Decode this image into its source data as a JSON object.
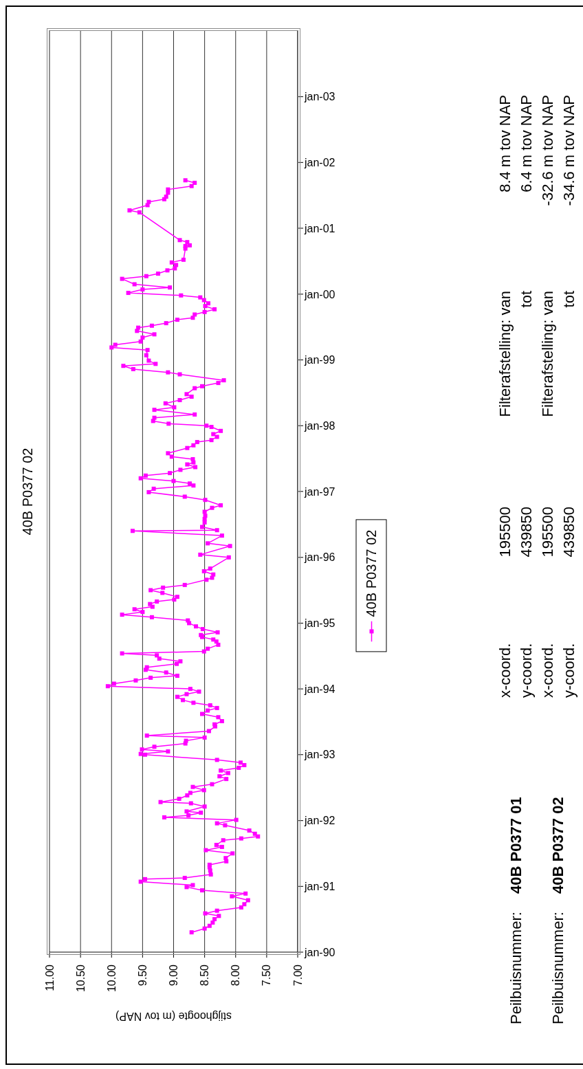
{
  "chart_data": {
    "type": "line",
    "orientation": "horizontal",
    "title": "40B P0377 02",
    "xlabel": "stijghoogte (m tov NAP)",
    "ylim": [
      "1990-01",
      "2004-01"
    ],
    "yticks": [
      {
        "value": "1990-01",
        "label": "jan-90"
      },
      {
        "value": "1991-01",
        "label": "jan-91"
      },
      {
        "value": "1992-01",
        "label": "jan-92"
      },
      {
        "value": "1993-01",
        "label": "jan-93"
      },
      {
        "value": "1994-01",
        "label": "jan-94"
      },
      {
        "value": "1995-01",
        "label": "jan-95"
      },
      {
        "value": "1996-01",
        "label": "jan-96"
      },
      {
        "value": "1997-01",
        "label": "jan-97"
      },
      {
        "value": "1998-01",
        "label": "jan-98"
      },
      {
        "value": "1999-01",
        "label": "jan-99"
      },
      {
        "value": "2000-01",
        "label": "jan-00"
      },
      {
        "value": "2001-01",
        "label": "jan-01"
      },
      {
        "value": "2002-01",
        "label": "jan-02"
      },
      {
        "value": "2003-01",
        "label": "jan-03"
      }
    ],
    "xlim": [
      11,
      7
    ],
    "xticks": [
      {
        "value": 7,
        "label": "7.00"
      },
      {
        "value": 7.5,
        "label": "7.50"
      },
      {
        "value": 8,
        "label": "8.00"
      },
      {
        "value": 8.5,
        "label": "8.50"
      },
      {
        "value": 9,
        "label": "9.00"
      },
      {
        "value": 9.5,
        "label": "9.50"
      },
      {
        "value": 10,
        "label": "10.00"
      },
      {
        "value": 10.5,
        "label": "10.50"
      },
      {
        "value": 11,
        "label": "11.00"
      }
    ],
    "grid": "x",
    "legend": "bottom",
    "marker": "square",
    "x": [
      "1990-04-21",
      "1990-05-12",
      "1990-05-27",
      "1990-06-14",
      "1990-07-03",
      "1990-07-21",
      "1990-08-04",
      "1990-08-19",
      "1990-09-06",
      "1990-09-24",
      "1990-10-16",
      "1990-11-07",
      "1990-11-22",
      "1990-12-10",
      "1990-12-28",
      "1991-01-08",
      "1991-01-27",
      "1991-02-10",
      "1991-02-17",
      "1991-03-08",
      "1991-03-30",
      "1991-04-17",
      "1991-05-01",
      "1991-05-20",
      "1991-06-07",
      "1991-07-03",
      "1991-07-21",
      "1991-08-08",
      "1991-08-19",
      "1991-09-14",
      "1991-09-24",
      "1991-10-05",
      "1991-10-20",
      "1991-11-07",
      "1991-12-06",
      "1991-12-17",
      "1992-01-05",
      "1992-01-19",
      "1992-01-30",
      "1992-02-14",
      "1992-02-21",
      "1992-03-19",
      "1992-04-06",
      "1992-04-13",
      "1992-05-01",
      "1992-05-20",
      "1992-06-03",
      "1992-06-18",
      "1992-07-06",
      "1992-07-21",
      "1992-08-19",
      "1992-09-03",
      "1992-09-21",
      "1992-10-05",
      "1992-10-20",
      "1992-11-04",
      "1992-11-18",
      "1992-12-03",
      "1993-01-01",
      "1993-01-05",
      "1993-01-19",
      "1993-01-30",
      "1993-02-14",
      "1993-03-04",
      "1993-03-19",
      "1993-04-06",
      "1993-04-17",
      "1993-05-12",
      "1993-06-07",
      "1993-06-18",
      "1993-07-06",
      "1993-07-28",
      "1993-08-15",
      "1993-09-03",
      "1993-09-17",
      "1993-10-02",
      "1993-10-16",
      "1993-10-31",
      "1993-11-18",
      "1993-12-03",
      "1993-12-17",
      "1994-01-01",
      "1994-01-16",
      "1994-01-30",
      "1994-02-17",
      "1994-03-04",
      "1994-03-15",
      "1994-04-02",
      "1994-04-17",
      "1994-05-01",
      "1994-05-20",
      "1994-06-03",
      "1994-06-18",
      "1994-07-06",
      "1994-07-17",
      "1994-07-28",
      "1994-08-12",
      "1994-09-03",
      "1994-09-21",
      "1994-10-02",
      "1994-10-16",
      "1994-10-27",
      "1994-11-11",
      "1994-11-29",
      "1994-12-14",
      "1995-01-01",
      "1995-01-16",
      "1995-02-03",
      "1995-02-17",
      "1995-03-04",
      "1995-03-19",
      "1995-04-02",
      "1995-04-17",
      "1995-05-01",
      "1995-05-12",
      "1995-05-27",
      "1995-06-18",
      "1995-07-03",
      "1995-07-17",
      "1995-08-01",
      "1995-08-30",
      "1995-09-10",
      "1995-09-28",
      "1995-10-16",
      "1995-10-31",
      "1996-01-01",
      "1996-01-16",
      "1996-03-04",
      "1996-03-19",
      "1996-05-01",
      "1996-05-27",
      "1996-05-31",
      "1996-06-18",
      "1996-07-13",
      "1996-08-01",
      "1996-08-19",
      "1996-09-10",
      "1996-10-02",
      "1996-10-16",
      "1996-11-15",
      "1996-12-03",
      "1996-12-28",
      "1997-01-16",
      "1997-02-03",
      "1997-02-14",
      "1997-02-28",
      "1997-03-15",
      "1997-03-30",
      "1997-04-13",
      "1997-05-01",
      "1997-05-16",
      "1997-05-31",
      "1997-06-11",
      "1997-06-29",
      "1997-07-13",
      "1997-08-01",
      "1997-08-30",
      "1997-09-14",
      "1997-10-02",
      "1997-10-13",
      "1997-10-31",
      "1997-11-15",
      "1997-12-03",
      "1997-12-25",
      "1998-01-01",
      "1998-01-12",
      "1998-01-27",
      "1998-02-14",
      "1998-03-04",
      "1998-03-30",
      "1998-04-13",
      "1998-05-05",
      "1998-05-23",
      "1998-06-11",
      "1998-06-25",
      "1998-07-28",
      "1998-08-08",
      "1998-08-26",
      "1998-09-10",
      "1998-10-13",
      "1998-10-24",
      "1998-11-11",
      "1998-11-29",
      "1998-12-10",
      "1998-12-28",
      "1999-01-27",
      "1999-02-25",
      "1999-03-11",
      "1999-03-26",
      "1999-04-13",
      "1999-05-05",
      "1999-05-23",
      "1999-06-11",
      "1999-06-29",
      "1999-07-10",
      "1999-07-24",
      "1999-08-12",
      "1999-08-23",
      "1999-09-10",
      "1999-09-24",
      "1999-10-09",
      "1999-10-27",
      "1999-11-11",
      "1999-11-29",
      "1999-12-14",
      "1999-12-25",
      "2000-01-08",
      "2000-01-27",
      "2000-02-07",
      "2000-02-25",
      "2000-03-26",
      "2000-04-10",
      "2000-04-24",
      "2000-05-12",
      "2000-05-23",
      "2000-06-11",
      "2000-06-25",
      "2000-07-10",
      "2000-09-10",
      "2000-09-24",
      "2000-09-28",
      "2000-10-16",
      "2000-10-27",
      "2001-03-30",
      "2001-04-10",
      "2001-05-09",
      "2001-05-27",
      "2001-06-11",
      "2001-06-25",
      "2001-07-17",
      "2001-08-04",
      "2001-08-23",
      "2001-09-10",
      "2001-09-24"
    ],
    "series": [
      {
        "name": "40B P0377 02",
        "color": "#ff00ff",
        "values": [
          8.71,
          8.5,
          8.42,
          8.37,
          8.34,
          8.27,
          8.49,
          8.3,
          7.91,
          7.86,
          7.8,
          8.06,
          7.84,
          8.54,
          8.79,
          8.69,
          9.53,
          9.46,
          8.82,
          8.4,
          8.41,
          8.42,
          8.42,
          8.15,
          8.16,
          8.05,
          8.48,
          8.22,
          8.31,
          8.2,
          7.91,
          7.64,
          7.69,
          7.78,
          8.17,
          8.3,
          7.99,
          9.15,
          8.76,
          8.56,
          8.79,
          8.5,
          8.72,
          9.21,
          8.91,
          8.78,
          8.73,
          8.51,
          8.69,
          8.38,
          8.15,
          8.26,
          8.12,
          8.24,
          7.95,
          7.86,
          7.92,
          8.3,
          9.46,
          9.53,
          9.09,
          9.51,
          9.31,
          8.81,
          8.8,
          8.5,
          9.43,
          8.43,
          8.33,
          8.34,
          8.22,
          8.28,
          8.54,
          8.45,
          8.3,
          8.41,
          8.68,
          8.85,
          8.94,
          8.79,
          8.59,
          8.73,
          10.06,
          9.96,
          9.61,
          9.37,
          8.94,
          9.12,
          9.45,
          9.43,
          8.95,
          8.89,
          9.23,
          9.27,
          9.83,
          8.51,
          8.45,
          8.28,
          8.31,
          8.36,
          8.54,
          8.56,
          8.29,
          8.53,
          8.64,
          8.75,
          8.77,
          9.35,
          9.83,
          9.5,
          9.63,
          9.34,
          9.38,
          9.27,
          8.99,
          8.94,
          9.18,
          9.37,
          9.17,
          8.82,
          8.47,
          8.38,
          8.36,
          8.51,
          8.41,
          8.11,
          8.57,
          8.09,
          8.45,
          8.22,
          9.66,
          8.3,
          8.54,
          8.5,
          8.5,
          8.49,
          8.5,
          8.38,
          8.24,
          8.49,
          8.82,
          9.4,
          9.32,
          8.68,
          8.74,
          9.0,
          9.53,
          9.45,
          9.06,
          8.89,
          8.65,
          8.78,
          8.68,
          8.69,
          9.03,
          9.09,
          8.78,
          8.68,
          8.62,
          8.39,
          8.3,
          8.36,
          8.24,
          8.39,
          8.47,
          9.08,
          9.33,
          9.31,
          8.66,
          9.31,
          8.99,
          9.13,
          8.9,
          8.71,
          8.79,
          8.66,
          8.54,
          8.28,
          8.19,
          8.9,
          9.09,
          9.65,
          9.81,
          9.29,
          9.4,
          9.44,
          9.42,
          10.0,
          9.94,
          9.53,
          9.5,
          9.31,
          9.59,
          9.57,
          9.35,
          9.12,
          8.94,
          8.69,
          8.66,
          8.5,
          8.34,
          8.49,
          8.44,
          8.51,
          8.57,
          8.88,
          9.73,
          9.5,
          9.06,
          9.63,
          9.83,
          9.44,
          9.25,
          9.1,
          8.98,
          8.96,
          9.03,
          8.84,
          8.81,
          8.81,
          8.74,
          8.78,
          8.9,
          9.55,
          9.71,
          9.42,
          9.4,
          9.15,
          9.12,
          9.09,
          9.09,
          8.71,
          8.66,
          8.81
        ]
      }
    ],
    "annotations": [
      "Peilbuisnummer:",
      "40B P0377 01",
      "x-coord.",
      "195500",
      "Filterafstelling: van",
      "8.4 m tov NAP",
      "y-coord.",
      "439850",
      "tot",
      "6.4 m tov NAP",
      "Peilbuisnummer:",
      "40B P0377 02",
      "x-coord.",
      "195500",
      "Filterafstelling: van",
      "-32.6 m tov NAP",
      "y-coord.",
      "439850",
      "tot",
      "-34.6 m tov NAP"
    ]
  }
}
